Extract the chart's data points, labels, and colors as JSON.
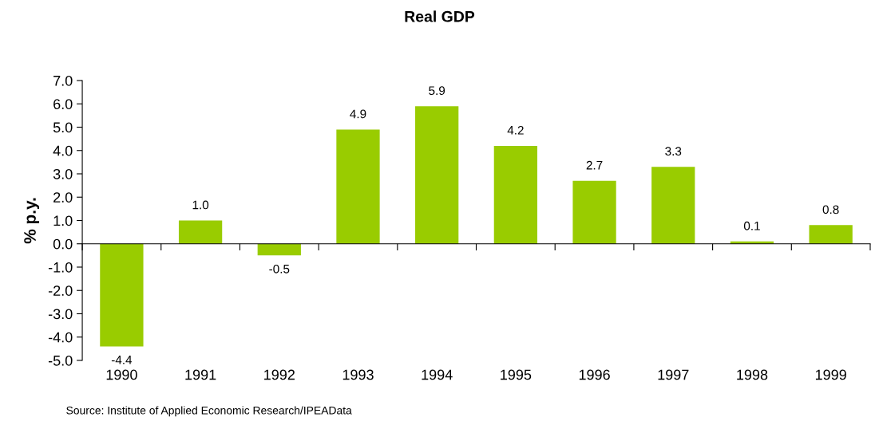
{
  "chart_data": {
    "type": "bar",
    "title": "Real GDP",
    "ylabel": "% p.y.",
    "categories": [
      "1990",
      "1991",
      "1992",
      "1993",
      "1994",
      "1995",
      "1996",
      "1997",
      "1998",
      "1999"
    ],
    "values": [
      -4.4,
      1.0,
      -0.5,
      4.9,
      5.9,
      4.2,
      2.7,
      3.3,
      0.1,
      0.8
    ],
    "value_labels": [
      "-4.4",
      "1.0",
      "-0.5",
      "4.9",
      "5.9",
      "4.2",
      "2.7",
      "3.3",
      "0.1",
      "0.8"
    ],
    "color": "#99cc00",
    "ylim": [
      -5,
      7
    ],
    "yticks": [
      {
        "value": -5,
        "label": "-5.0"
      },
      {
        "value": -4,
        "label": "-4.0"
      },
      {
        "value": -3,
        "label": "-3.0"
      },
      {
        "value": -2,
        "label": "-2.0"
      },
      {
        "value": -1,
        "label": "-1.0"
      },
      {
        "value": 0,
        "label": "0.0"
      },
      {
        "value": 1,
        "label": "1.0"
      },
      {
        "value": 2,
        "label": "2.0"
      },
      {
        "value": 3,
        "label": "3.0"
      },
      {
        "value": 4,
        "label": "4.0"
      },
      {
        "value": 5,
        "label": "5.0"
      },
      {
        "value": 6,
        "label": "6.0"
      },
      {
        "value": 7,
        "label": "7.0"
      }
    ],
    "legend": false,
    "annotations": [
      "Source: Institute of Applied Economic Research/IPEAData"
    ]
  }
}
